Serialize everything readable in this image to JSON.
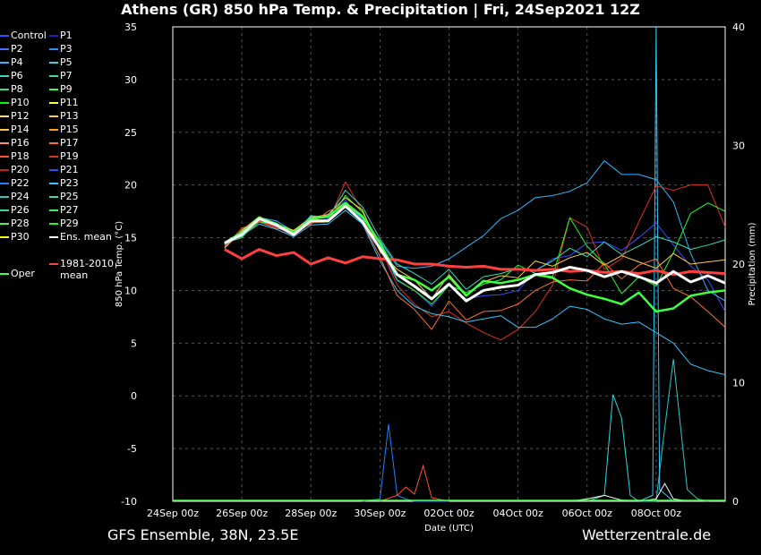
{
  "title": "Athens  (GR)  850 hPa Temp. & Precipitation | Fri, 24Sep2021 12Z",
  "footer": {
    "left": "GFS Ensemble, 38N, 23.5E",
    "right": "Wetterzentrale.de"
  },
  "legend": [
    {
      "label": "Control",
      "color": "#3050ff"
    },
    {
      "label": "P1",
      "color": "#2020c0"
    },
    {
      "label": "P2",
      "color": "#4a6cff"
    },
    {
      "label": "P3",
      "color": "#2a8cff"
    },
    {
      "label": "P4",
      "color": "#30b8ff"
    },
    {
      "label": "P5",
      "color": "#30d8e0"
    },
    {
      "label": "P6",
      "color": "#30e0c0"
    },
    {
      "label": "P7",
      "color": "#30e0a0"
    },
    {
      "label": "P8",
      "color": "#30e080"
    },
    {
      "label": "P9",
      "color": "#30ff60"
    },
    {
      "label": "P10",
      "color": "#00ff00"
    },
    {
      "label": "P11",
      "color": "#ffff40"
    },
    {
      "label": "P12",
      "color": "#ffe060"
    },
    {
      "label": "P13",
      "color": "#ffd040"
    },
    {
      "label": "P14",
      "color": "#ffc060"
    },
    {
      "label": "P15",
      "color": "#ffa020"
    },
    {
      "label": "P16",
      "color": "#ff9060"
    },
    {
      "label": "P17",
      "color": "#ff7030"
    },
    {
      "label": "P18",
      "color": "#ff5030"
    },
    {
      "label": "P19",
      "color": "#e03020"
    },
    {
      "label": "P20",
      "color": "#c02020"
    },
    {
      "label": "P21",
      "color": "#2050ff"
    },
    {
      "label": "P22",
      "color": "#2080ff"
    },
    {
      "label": "P23",
      "color": "#30c8ff"
    },
    {
      "label": "P24",
      "color": "#30c8c8"
    },
    {
      "label": "P25",
      "color": "#30e0b0"
    },
    {
      "label": "P26",
      "color": "#30e090"
    },
    {
      "label": "P27",
      "color": "#30f070"
    },
    {
      "label": "P28",
      "color": "#50f050"
    },
    {
      "label": "P29",
      "color": "#20ff20"
    },
    {
      "label": "P30",
      "color": "#ffff00"
    },
    {
      "label": "Ens. mean",
      "color": "#ffffff"
    },
    {
      "label": "Oper",
      "color": "#40ff40"
    },
    {
      "label": "1981-2010 mean",
      "color": "#ff4040"
    }
  ],
  "chart_data": {
    "type": "line",
    "title": "Athens  (GR)  850 hPa Temp. & Precipitation | Fri, 24Sep2021 12Z",
    "xlabel": "Date (UTC)",
    "ylabel": "850 hPa Temp. (°C)",
    "y2label": "Precipitation (mm)",
    "x_ticks": [
      "24Sep 00z",
      "26Sep 00z",
      "28Sep 00z",
      "30Sep 00z",
      "02Oct 00z",
      "04Oct 00z",
      "06Oct 00z",
      "08Oct 00z"
    ],
    "ylim": [
      -10,
      35
    ],
    "y_ticks": [
      -10,
      -5,
      0,
      5,
      10,
      15,
      20,
      25,
      30,
      35
    ],
    "y2lim": [
      0,
      40
    ],
    "y2_ticks": [
      0,
      10,
      20,
      30,
      40
    ],
    "xlim_days": [
      0,
      16
    ],
    "grid": true,
    "series": [
      {
        "name": "Ens. mean",
        "x": [
          1.5,
          2,
          2.5,
          3,
          3.5,
          4,
          4.5,
          5,
          5.5,
          6,
          6.5,
          7,
          7.5,
          8,
          8.5,
          9,
          9.5,
          10,
          10.5,
          11,
          11.5,
          12,
          12.5,
          13,
          13.5,
          14,
          14.5,
          15,
          15.5,
          16
        ],
        "values": [
          14.5,
          15.3,
          16.8,
          16.2,
          15.3,
          16.6,
          16.6,
          18,
          16.5,
          14,
          11.5,
          10.4,
          9.2,
          10.6,
          9,
          10,
          10.3,
          10.5,
          11.5,
          11.7,
          12.2,
          11.9,
          11.3,
          11.8,
          11.3,
          10.7,
          11.8,
          10.8,
          11.4,
          10.7
        ]
      },
      {
        "name": "Oper",
        "x": [
          1.5,
          2,
          2.5,
          3,
          3.5,
          4,
          4.5,
          5,
          5.5,
          6,
          6.5,
          7,
          7.5,
          8,
          8.5,
          9,
          9.5,
          10,
          10.5,
          11,
          11.5,
          12,
          12.5,
          13,
          13.5,
          14,
          14.5,
          15,
          15.5,
          16
        ],
        "values": [
          14.5,
          15.5,
          16.9,
          16.3,
          15.5,
          16.8,
          17,
          18.3,
          17,
          14.5,
          11.5,
          11,
          10,
          11.3,
          9.5,
          10.9,
          10.7,
          11,
          11.5,
          11.2,
          10.2,
          9.6,
          9.2,
          8.7,
          9.8,
          8,
          8.3,
          9.5,
          9.8,
          10
        ]
      },
      {
        "name": "1981-2010 mean",
        "x": [
          1.5,
          2,
          2.5,
          3,
          3.5,
          4,
          4.5,
          5,
          5.5,
          6,
          6.5,
          7,
          7.5,
          8,
          8.5,
          9,
          9.5,
          10,
          10.5,
          11,
          11.5,
          12,
          12.5,
          13,
          13.5,
          14,
          14.5,
          15,
          15.5,
          16
        ],
        "values": [
          13.9,
          13,
          13.9,
          13.3,
          13.6,
          12.5,
          13.1,
          12.6,
          13.2,
          13,
          12.9,
          12.5,
          12.5,
          12.3,
          12.2,
          12.3,
          12,
          12,
          11.9,
          12,
          11.8,
          11.9,
          11.7,
          11.8,
          11.6,
          11.9,
          11.5,
          11.8,
          11.7,
          11.6
        ]
      },
      {
        "name": "Control",
        "x": [
          1.5,
          2,
          2.5,
          3,
          3.5,
          4,
          4.5,
          5,
          5.5,
          6,
          6.5,
          7,
          7.5,
          8,
          8.5,
          9,
          9.5,
          10,
          10.5,
          11,
          11.5,
          12,
          12.5,
          13,
          13.5,
          14,
          14.5,
          15,
          15.5,
          16
        ],
        "values": [
          14.6,
          15.4,
          16.9,
          16.1,
          15.2,
          16.5,
          16.8,
          18.6,
          16.2,
          13.8,
          10.9,
          10,
          8.5,
          10.5,
          9.2,
          9.5,
          9.6,
          10,
          11.8,
          13,
          13.3,
          14.5,
          14.6,
          13.8,
          15,
          16.4,
          14.3,
          12.3,
          11,
          8
        ]
      },
      {
        "name": "P4",
        "x": [
          1.5,
          2,
          2.5,
          3,
          3.5,
          4,
          4.5,
          5,
          5.5,
          6,
          6.5,
          7,
          7.5,
          8,
          8.5,
          9,
          9.5,
          10,
          10.5,
          11,
          11.5,
          12,
          12.5,
          13,
          13.5,
          14,
          14.5,
          15,
          15.5,
          16
        ],
        "values": [
          14.3,
          15.6,
          16.9,
          16.6,
          15.6,
          17,
          17.1,
          18.2,
          16.8,
          14.7,
          12.3,
          12.1,
          12.3,
          13,
          14.1,
          15.2,
          16.8,
          17.6,
          18.8,
          19,
          19.4,
          20.2,
          22.3,
          21,
          21,
          20.5,
          18.4,
          13.5,
          10,
          9
        ]
      },
      {
        "name": "P19",
        "x": [
          1.5,
          2,
          2.5,
          3,
          3.5,
          4,
          4.5,
          5,
          5.5,
          6,
          6.5,
          7,
          7.5,
          8,
          8.5,
          9,
          9.5,
          10,
          10.5,
          11,
          11.5,
          12,
          12.5,
          13,
          13.5,
          14,
          14.5,
          15,
          15.5,
          16
        ],
        "values": [
          14.2,
          15.3,
          16.6,
          16,
          15.2,
          16.4,
          16.5,
          20.3,
          17.5,
          14,
          10.5,
          8.7,
          7.5,
          8,
          6.9,
          6,
          5.3,
          6.3,
          8,
          10.5,
          16.9,
          16,
          12,
          13,
          16.5,
          19.9,
          19.5,
          20,
          20,
          16
        ]
      },
      {
        "name": "P23",
        "x": [
          1.5,
          2,
          2.5,
          3,
          3.5,
          4,
          4.5,
          5,
          5.5,
          6,
          6.5,
          7,
          7.5,
          8,
          8.5,
          9,
          9.5,
          10,
          10.5,
          11,
          11.5,
          12,
          12.5,
          13,
          13.5,
          14,
          14.5,
          15,
          15.5,
          16
        ],
        "values": [
          14.4,
          15.2,
          16.3,
          15.8,
          15.1,
          16.2,
          16.3,
          17.6,
          16.3,
          12.8,
          10,
          8.5,
          7.8,
          7.5,
          7,
          7.3,
          7.6,
          6.5,
          6.5,
          7.3,
          8.5,
          8.2,
          7.3,
          6.8,
          7,
          6,
          5,
          3,
          2.4,
          2
        ]
      },
      {
        "name": "P29",
        "x": [
          1.5,
          2,
          2.5,
          3,
          3.5,
          4,
          4.5,
          5,
          5.5,
          6,
          6.5,
          7,
          7.5,
          8,
          8.5,
          9,
          9.5,
          10,
          10.5,
          11,
          11.5,
          12,
          12.5,
          13,
          13.5,
          14,
          14.5,
          15,
          15.5,
          16
        ],
        "values": [
          14.6,
          15.1,
          16.5,
          16.3,
          15.4,
          16.5,
          16.5,
          19,
          17.4,
          14.4,
          11,
          10,
          8.7,
          10.5,
          9.8,
          10.6,
          11,
          12.4,
          11.6,
          11.3,
          16.9,
          14.2,
          12.5,
          9.7,
          11.3,
          10.4,
          13.6,
          17.3,
          18.3,
          17.5
        ]
      },
      {
        "name": "P13",
        "x": [
          1.5,
          2,
          2.5,
          3,
          3.5,
          4,
          4.5,
          5,
          5.5,
          6,
          6.5,
          7,
          7.5,
          8,
          8.5,
          9,
          9.5,
          10,
          10.5,
          11,
          11.5,
          12,
          12.5,
          13,
          13.5,
          14,
          14.5,
          15,
          15.5,
          16
        ],
        "values": [
          14,
          15.7,
          17,
          16.3,
          15.7,
          16.9,
          17.2,
          18.8,
          17.6,
          13.7,
          12,
          11,
          9.2,
          11.5,
          9.6,
          10.8,
          11.4,
          11.2,
          12.8,
          12.3,
          13.1,
          13.6,
          12.4,
          13.3,
          12.7,
          12.1,
          13.5,
          12.5,
          12.7,
          12.9
        ]
      },
      {
        "name": "P17",
        "x": [
          1.5,
          2,
          2.5,
          3,
          3.5,
          4,
          4.5,
          5,
          5.5,
          6,
          6.5,
          7,
          7.5,
          8,
          8.5,
          9,
          9.5,
          10,
          10.5,
          11,
          11.5,
          12,
          12.5,
          13,
          13.5,
          14,
          14.5,
          15,
          15.5,
          16
        ],
        "values": [
          14.1,
          15.9,
          16.5,
          15.9,
          15.6,
          16.3,
          17.5,
          18.2,
          16.4,
          13.2,
          9.5,
          8.2,
          6.3,
          9,
          7.2,
          8,
          8.1,
          8.7,
          10,
          10.8,
          11,
          10.9,
          12.6,
          11.1,
          12.4,
          13,
          10.2,
          9.4,
          8,
          6.5
        ]
      },
      {
        "name": "P6",
        "x": [
          1.5,
          2,
          2.5,
          3,
          3.5,
          4,
          4.5,
          5,
          5.5,
          6,
          6.5,
          7,
          7.5,
          8,
          8.5,
          9,
          9.5,
          10,
          10.5,
          11,
          11.5,
          12,
          12.5,
          13,
          13.5,
          14,
          14.5,
          15,
          15.5,
          16
        ],
        "values": [
          14.5,
          15,
          16.9,
          16.4,
          15.3,
          17.1,
          16.9,
          19.5,
          17.9,
          14.9,
          12.5,
          11.6,
          10.6,
          12,
          10.1,
          11.3,
          11.6,
          12.1,
          11.9,
          12.8,
          14,
          13.2,
          14.6,
          13.4,
          14.2,
          15.1,
          14.6,
          13.9,
          14.3,
          14.8
        ]
      }
    ],
    "precipitation": [
      {
        "name": "P22",
        "x": [
          5.5,
          6,
          6.25,
          6.5,
          6.75,
          7,
          7.5,
          8
        ],
        "values": [
          0,
          0.2,
          6.5,
          0.5,
          0.2,
          0,
          0,
          0
        ]
      },
      {
        "name": "P18",
        "x": [
          6,
          6.5,
          6.75,
          7,
          7.25,
          7.5,
          8
        ],
        "values": [
          0,
          0.5,
          1.2,
          0.6,
          3,
          0.3,
          0
        ]
      },
      {
        "name": "P5",
        "x": [
          12,
          12.5,
          12.75,
          13,
          13.25,
          13.5,
          14
        ],
        "values": [
          0,
          0.5,
          9,
          7,
          0.5,
          0,
          0
        ]
      },
      {
        "name": "P23",
        "x": [
          13.5,
          13.9,
          14,
          14.1,
          14.5
        ],
        "values": [
          0,
          0.5,
          40,
          1,
          0
        ]
      },
      {
        "name": "P24",
        "x": [
          14,
          14.2,
          14.5,
          14.9,
          15.2,
          15.5
        ],
        "values": [
          0,
          5,
          12,
          1,
          0.2,
          0
        ]
      },
      {
        "name": "Ens. mean",
        "x": [
          11.5,
          12,
          12.5,
          13,
          13.5,
          14,
          14.25,
          14.5,
          15
        ],
        "values": [
          0,
          0.2,
          0.5,
          0.1,
          0,
          0.2,
          1.5,
          0.2,
          0
        ]
      }
    ]
  }
}
